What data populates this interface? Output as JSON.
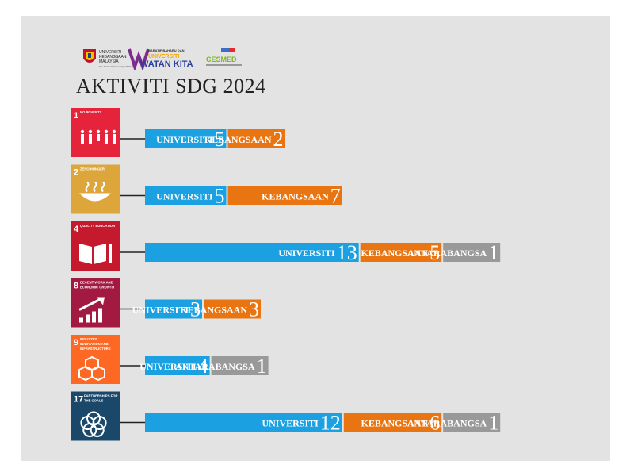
{
  "page": {
    "title": "AKTIVITI SDG 2024",
    "logos": [
      {
        "name": "ukm-logo",
        "lines": [
          "UNIVERSITI",
          "KEBANGSAAN",
          "MALAYSIA",
          "The National University of Malaysia"
        ]
      },
      {
        "name": "watan-kita-logo",
        "lines": [
          "NARATIF BAHARU DAN",
          "UNIVERSITI",
          "WATAN KITA"
        ]
      },
      {
        "name": "cesmed-logo",
        "lines": [
          "CESMED"
        ]
      }
    ]
  },
  "colors": {
    "universiti": "#1ba1e2",
    "kebangsaan": "#e87511",
    "antarabangsa": "#999999",
    "panel": "#e3e3e3"
  },
  "chart_data": {
    "type": "bar",
    "stacked": true,
    "orientation": "horizontal",
    "title": "AKTIVITI SDG 2024",
    "categories": [
      {
        "goal": "1",
        "label": "NO POVERTY",
        "color": "#e5243b",
        "icon": "family-icon"
      },
      {
        "goal": "2",
        "label": "ZERO HUNGER",
        "color": "#dda63a",
        "icon": "bowl-icon"
      },
      {
        "goal": "4",
        "label": "QUALITY EDUCATION",
        "color": "#c5192d",
        "icon": "book-icon"
      },
      {
        "goal": "8",
        "label": "DECENT WORK AND ECONOMIC GROWTH",
        "color": "#a21942",
        "icon": "growth-chart-icon"
      },
      {
        "goal": "9",
        "label": "INDUSTRY, INNOVATION AND INFRASTRUCTURE",
        "color": "#fd6925",
        "icon": "cubes-icon"
      },
      {
        "goal": "17",
        "label": "PARTNERSHIPS FOR THE GOALS",
        "color": "#19486a",
        "icon": "rings-icon"
      }
    ],
    "series": [
      {
        "name": "UNIVERSITI",
        "values": [
          5,
          5,
          13,
          3,
          4,
          12
        ]
      },
      {
        "name": "KEBANGSAAN",
        "values": [
          2,
          7,
          5,
          3,
          0,
          6
        ]
      },
      {
        "name": "ANTARABANGSA",
        "values": [
          0,
          0,
          1,
          0,
          1,
          1
        ]
      }
    ]
  }
}
